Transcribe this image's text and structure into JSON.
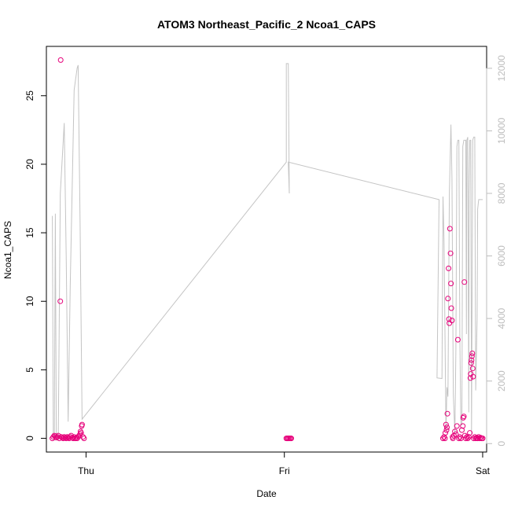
{
  "chart_data": {
    "type": "scatter",
    "title": "ATOM3 Northeast_Pacific_2 Ncoa1_CAPS",
    "xlabel": "Date",
    "ylabel": "Ncoa1_CAPS",
    "x_ticks": [
      {
        "label": "Thu",
        "day": 0
      },
      {
        "label": "Fri",
        "day": 1
      },
      {
        "label": "Sat",
        "day": 2
      }
    ],
    "xlim_days": [
      -0.2,
      2.02
    ],
    "left_axis": {
      "ticks": [
        0,
        5,
        10,
        15,
        20,
        25
      ],
      "ylim": [
        -1.0,
        28.6
      ]
    },
    "right_axis": {
      "ticks": [
        0,
        2000,
        4000,
        6000,
        8000,
        10000,
        12000
      ],
      "ylim": [
        -270,
        12700
      ],
      "color": "#bdbdbd"
    },
    "grid": false,
    "points_series": {
      "color": "#e6007a",
      "points": [
        [
          -0.17,
          0.0
        ],
        [
          -0.165,
          0.1
        ],
        [
          -0.16,
          0.2
        ],
        [
          -0.155,
          0.15
        ],
        [
          -0.15,
          0.05
        ],
        [
          -0.145,
          0.1
        ],
        [
          -0.14,
          0.2
        ],
        [
          -0.135,
          0.0
        ],
        [
          -0.13,
          10.0
        ],
        [
          -0.128,
          27.6
        ],
        [
          -0.125,
          0.1
        ],
        [
          -0.12,
          0.05
        ],
        [
          -0.115,
          0.0
        ],
        [
          -0.11,
          0.1
        ],
        [
          -0.105,
          0.05
        ],
        [
          -0.1,
          0.0
        ],
        [
          -0.095,
          0.1
        ],
        [
          -0.09,
          0.05
        ],
        [
          -0.085,
          0.0
        ],
        [
          -0.08,
          0.1
        ],
        [
          -0.075,
          0.2
        ],
        [
          -0.07,
          0.05
        ],
        [
          -0.065,
          0.0
        ],
        [
          -0.06,
          0.1
        ],
        [
          -0.055,
          0.0
        ],
        [
          -0.05,
          0.05
        ],
        [
          -0.045,
          0.0
        ],
        [
          -0.04,
          0.1
        ],
        [
          -0.035,
          0.2
        ],
        [
          -0.03,
          0.3
        ],
        [
          -0.028,
          0.5
        ],
        [
          -0.025,
          0.4
        ],
        [
          -0.022,
          0.9
        ],
        [
          -0.02,
          1.0
        ],
        [
          -0.015,
          0.1
        ],
        [
          -0.01,
          0.0
        ],
        [
          1.01,
          0.0
        ],
        [
          1.015,
          0.0
        ],
        [
          1.02,
          0.0
        ],
        [
          1.025,
          0.0
        ],
        [
          1.03,
          0.0
        ],
        [
          1.035,
          0.0
        ],
        [
          1.8,
          0.0
        ],
        [
          1.805,
          0.1
        ],
        [
          1.81,
          0.0
        ],
        [
          1.812,
          0.4
        ],
        [
          1.815,
          1.0
        ],
        [
          1.818,
          0.6
        ],
        [
          1.82,
          0.8
        ],
        [
          1.822,
          1.8
        ],
        [
          1.825,
          10.2
        ],
        [
          1.828,
          12.4
        ],
        [
          1.83,
          8.7
        ],
        [
          1.832,
          8.4
        ],
        [
          1.835,
          15.3
        ],
        [
          1.838,
          13.5
        ],
        [
          1.84,
          11.3
        ],
        [
          1.842,
          9.5
        ],
        [
          1.845,
          8.6
        ],
        [
          1.848,
          0.1
        ],
        [
          1.85,
          0.0
        ],
        [
          1.855,
          0.2
        ],
        [
          1.86,
          0.5
        ],
        [
          1.865,
          0.3
        ],
        [
          1.87,
          0.9
        ],
        [
          1.875,
          7.2
        ],
        [
          1.88,
          0.0
        ],
        [
          1.885,
          0.1
        ],
        [
          1.89,
          0.0
        ],
        [
          1.895,
          0.6
        ],
        [
          1.9,
          0.9
        ],
        [
          1.902,
          1.5
        ],
        [
          1.905,
          1.6
        ],
        [
          1.908,
          11.4
        ],
        [
          1.91,
          0.2
        ],
        [
          1.915,
          0.0
        ],
        [
          1.92,
          0.1
        ],
        [
          1.925,
          0.0
        ],
        [
          1.93,
          0.1
        ],
        [
          1.935,
          0.4
        ],
        [
          1.938,
          4.4
        ],
        [
          1.94,
          4.7
        ],
        [
          1.942,
          5.5
        ],
        [
          1.944,
          5.7
        ],
        [
          1.946,
          6.0
        ],
        [
          1.948,
          6.2
        ],
        [
          1.95,
          5.1
        ],
        [
          1.952,
          4.5
        ],
        [
          1.955,
          0.0
        ],
        [
          1.96,
          0.1
        ],
        [
          1.965,
          0.0
        ],
        [
          1.97,
          0.05
        ],
        [
          1.975,
          0.0
        ],
        [
          1.98,
          0.1
        ],
        [
          1.985,
          0.0
        ],
        [
          1.99,
          0.05
        ],
        [
          1.995,
          0.0
        ],
        [
          2.0,
          0.0
        ]
      ]
    },
    "line_series": {
      "color": "#c4c4c4",
      "axis": "right",
      "points": [
        [
          -0.17,
          7280
        ],
        [
          -0.165,
          300
        ],
        [
          -0.16,
          100
        ],
        [
          -0.155,
          7350
        ],
        [
          -0.15,
          300
        ],
        [
          -0.14,
          100
        ],
        [
          -0.13,
          8000
        ],
        [
          -0.11,
          10250
        ],
        [
          -0.1,
          6000
        ],
        [
          -0.09,
          700
        ],
        [
          -0.08,
          5000
        ],
        [
          -0.06,
          11300
        ],
        [
          -0.045,
          12000
        ],
        [
          -0.04,
          12100
        ],
        [
          -0.03,
          7000
        ],
        [
          -0.02,
          780
        ],
        [
          1.01,
          9000
        ],
        [
          1.01,
          12150
        ],
        [
          1.02,
          12150
        ],
        [
          1.025,
          8000
        ],
        [
          1.02,
          9000
        ],
        [
          1.78,
          7800
        ],
        [
          1.77,
          2100
        ],
        [
          1.795,
          2080
        ],
        [
          1.8,
          7900
        ],
        [
          1.805,
          6500
        ],
        [
          1.815,
          400
        ],
        [
          1.82,
          1800
        ],
        [
          1.825,
          1500
        ],
        [
          1.832,
          8000
        ],
        [
          1.84,
          10200
        ],
        [
          1.845,
          8500
        ],
        [
          1.852,
          1600
        ],
        [
          1.86,
          300
        ],
        [
          1.865,
          3000
        ],
        [
          1.87,
          9500
        ],
        [
          1.875,
          9700
        ],
        [
          1.88,
          9700
        ],
        [
          1.885,
          3500
        ],
        [
          1.89,
          600
        ],
        [
          1.895,
          600
        ],
        [
          1.9,
          9500
        ],
        [
          1.905,
          9700
        ],
        [
          1.915,
          9700
        ],
        [
          1.918,
          3500
        ],
        [
          1.92,
          9700
        ],
        [
          1.925,
          9800
        ],
        [
          1.93,
          1000
        ],
        [
          1.932,
          8000
        ],
        [
          1.935,
          9700
        ],
        [
          1.94,
          9700
        ],
        [
          1.944,
          300
        ],
        [
          1.95,
          9700
        ],
        [
          1.955,
          9800
        ],
        [
          1.96,
          9800
        ],
        [
          1.965,
          1700
        ],
        [
          1.972,
          4000
        ],
        [
          1.975,
          7500
        ],
        [
          1.98,
          7800
        ],
        [
          2.0,
          7800
        ]
      ]
    }
  }
}
